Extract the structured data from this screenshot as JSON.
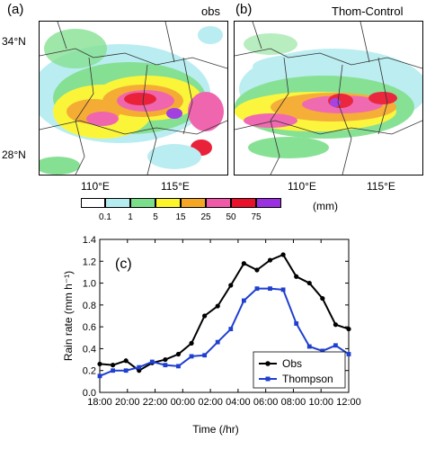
{
  "panel_a": {
    "label": "(a)",
    "title": "obs",
    "y_ticks": [
      "34°N",
      "28°N"
    ],
    "x_ticks": [
      "110°E",
      "115°E"
    ]
  },
  "panel_b": {
    "label": "(b)",
    "title": "Thom-Control",
    "x_ticks": [
      "110°E",
      "115°E"
    ]
  },
  "colorbar": {
    "unit": "(mm)",
    "labels": [
      "0.1",
      "1",
      "5",
      "15",
      "25",
      "50",
      "75"
    ],
    "colors": [
      "#ffffff",
      "#b4ecf0",
      "#7bde8a",
      "#fbf52a",
      "#f5a623",
      "#ee5aa8",
      "#e8102a",
      "#9b30e0"
    ]
  },
  "chart_data": {
    "type": "line",
    "label": "(c)",
    "xlabel": "Time (/hr)",
    "ylabel": "Rain rate (mm h⁻¹)",
    "ylim": [
      0.0,
      1.4
    ],
    "y_ticks": [
      "0.0",
      "0.2",
      "0.4",
      "0.6",
      "0.8",
      "1.0",
      "1.2",
      "1.4"
    ],
    "x_ticks": [
      "18:00",
      "20:00",
      "22:00",
      "00:00",
      "02:00",
      "04:00",
      "06:00",
      "08:00",
      "10:00",
      "12:00"
    ],
    "legend_position": "bottom-right",
    "series": [
      {
        "name": "Obs",
        "color": "#000000",
        "marker": "circle",
        "values": [
          0.26,
          0.25,
          0.29,
          0.2,
          0.27,
          0.3,
          0.35,
          0.45,
          0.7,
          0.79,
          0.98,
          1.18,
          1.12,
          1.21,
          1.26,
          1.06,
          1.0,
          0.86,
          0.62,
          0.58
        ]
      },
      {
        "name": "Thompson",
        "color": "#1f3fcf",
        "marker": "square",
        "values": [
          0.15,
          0.2,
          0.2,
          0.23,
          0.28,
          0.25,
          0.24,
          0.33,
          0.34,
          0.46,
          0.58,
          0.84,
          0.95,
          0.95,
          0.94,
          0.63,
          0.42,
          0.38,
          0.43,
          0.35
        ]
      }
    ]
  }
}
